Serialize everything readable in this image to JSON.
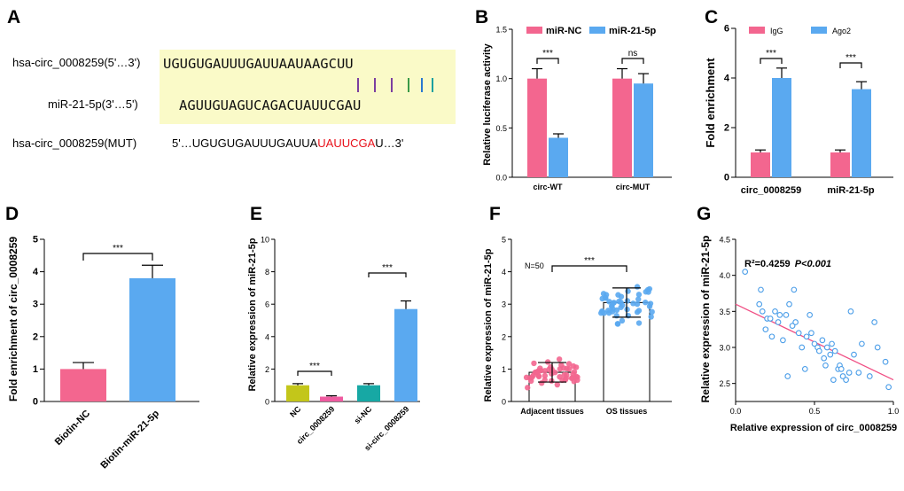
{
  "panel_labels": [
    "A",
    "B",
    "C",
    "D",
    "E",
    "F",
    "G"
  ],
  "panelA": {
    "rows": [
      {
        "label": "hsa-circ_0008259(5'…3')",
        "seq": "UGUGUGAUUUGAUUAAUAAGCUU"
      },
      {
        "label": "miR-21-5p(3'…5')",
        "seq": "AGUUGUAGUCAGACUAUUCGAU"
      },
      {
        "label": "hsa-circ_0008259(MUT)",
        "seq_prefix": "5'…UGUGUGAUUUGAUUA",
        "seq_mut": "UAUUCGA",
        "seq_suffix": "U…3'"
      }
    ],
    "colors": {
      "highlight": "#fafac8",
      "mutation": "#e8101a"
    }
  },
  "chart_data": [
    {
      "panel": "B",
      "type": "bar",
      "categories": [
        "circ-WT",
        "circ-MUT"
      ],
      "series": [
        {
          "name": "miR-NC",
          "values": [
            1.0,
            1.0
          ],
          "errors": [
            0.1,
            0.1
          ],
          "color": "#f3668f"
        },
        {
          "name": "miR-21-5p",
          "values": [
            0.4,
            0.95
          ],
          "errors": [
            0.04,
            0.1
          ],
          "color": "#5aa9f0"
        }
      ],
      "ylabel": "Relative luciferase activity",
      "ylim": [
        0,
        1.5
      ],
      "yticks": [
        "0.0",
        "0.5",
        "1.0",
        "1.5"
      ],
      "significance": [
        "***",
        "ns"
      ],
      "legend": "top"
    },
    {
      "panel": "C",
      "type": "bar",
      "categories": [
        "circ_0008259",
        "miR-21-5p"
      ],
      "series": [
        {
          "name": "IgG",
          "values": [
            1.0,
            1.0
          ],
          "errors": [
            0.1,
            0.1
          ],
          "color": "#f3668f"
        },
        {
          "name": "Ago2",
          "values": [
            4.0,
            3.55
          ],
          "errors": [
            0.4,
            0.3
          ],
          "color": "#5aa9f0"
        }
      ],
      "ylabel": "Fold enrichment",
      "ylim": [
        0,
        6
      ],
      "yticks": [
        "0",
        "2",
        "4",
        "6"
      ],
      "significance": [
        "***",
        "***"
      ],
      "legend": "top"
    },
    {
      "panel": "D",
      "type": "bar",
      "categories": [
        "Biotin-NC",
        "Biotin-miR-21-5p"
      ],
      "values": [
        1.0,
        3.8
      ],
      "errors": [
        0.2,
        0.4
      ],
      "colors": [
        "#f3668f",
        "#5aa9f0"
      ],
      "ylabel": "Fold enrichment of circ_0008259",
      "ylim": [
        0,
        5
      ],
      "yticks": [
        "0",
        "1",
        "2",
        "3",
        "4",
        "5"
      ],
      "significance": [
        "***"
      ]
    },
    {
      "panel": "E",
      "type": "bar",
      "categories": [
        "NC",
        "circ_0008259",
        "si-NC",
        "si-circ_0008259"
      ],
      "values": [
        1.0,
        0.3,
        1.0,
        5.7
      ],
      "errors": [
        0.1,
        0.05,
        0.1,
        0.5
      ],
      "colors": [
        "#c3c61a",
        "#ef5ba0",
        "#17a8a4",
        "#5aa9f0"
      ],
      "ylabel": "Relative expression of miR-21-5p",
      "ylim": [
        0,
        10
      ],
      "yticks": [
        "0",
        "2",
        "4",
        "6",
        "8",
        "10"
      ],
      "significance": [
        "***",
        "***"
      ]
    },
    {
      "panel": "F",
      "type": "bar",
      "categories": [
        "Adjacent tissues",
        "OS tissues"
      ],
      "values": [
        0.9,
        3.05
      ],
      "sd": [
        0.3,
        0.45
      ],
      "dot_colors": [
        "#f3668f",
        "#5aa9f0"
      ],
      "n_label": "N=50",
      "ylabel": "Relative expression of miR-21-5p",
      "ylim": [
        0,
        5
      ],
      "yticks": [
        "0",
        "1",
        "2",
        "3",
        "4",
        "5"
      ],
      "significance": [
        "***"
      ]
    },
    {
      "panel": "G",
      "type": "scatter",
      "xlabel": "Relative expression of circ_0008259",
      "ylabel": "Relative expression of miR-21-5p",
      "xlim": [
        0,
        1
      ],
      "ylim": [
        2.25,
        4.5
      ],
      "xticks": [
        "0.0",
        "0.5",
        "1.0"
      ],
      "yticks": [
        "2.5",
        "3.0",
        "3.5",
        "4.0",
        "4.5"
      ],
      "annotation_r2": "R²=0.4259",
      "annotation_p": "P<0.001",
      "line_color": "#f04f84",
      "point_color": "#4a9de8",
      "fit": {
        "x": [
          0.0,
          1.0
        ],
        "y": [
          3.6,
          2.55
        ]
      },
      "x": [
        0.06,
        0.16,
        0.19,
        0.17,
        0.2,
        0.23,
        0.25,
        0.27,
        0.3,
        0.32,
        0.34,
        0.36,
        0.38,
        0.42,
        0.45,
        0.48,
        0.5,
        0.52,
        0.53,
        0.55,
        0.57,
        0.58,
        0.6,
        0.62,
        0.63,
        0.65,
        0.66,
        0.68,
        0.7,
        0.72,
        0.73,
        0.75,
        0.8,
        0.85,
        0.9,
        0.95,
        0.97,
        0.15,
        0.28,
        0.33,
        0.4,
        0.44,
        0.47,
        0.56,
        0.61,
        0.67,
        0.78,
        0.88,
        0.22,
        0.37
      ],
      "y": [
        4.05,
        3.8,
        3.25,
        3.5,
        3.4,
        3.15,
        3.5,
        3.35,
        3.1,
        3.45,
        3.6,
        3.3,
        3.35,
        3.0,
        3.15,
        3.2,
        3.05,
        3.0,
        2.95,
        3.1,
        2.75,
        3.0,
        2.9,
        2.55,
        2.95,
        2.7,
        2.75,
        2.6,
        2.55,
        2.65,
        3.5,
        2.9,
        3.05,
        2.6,
        3.0,
        2.8,
        2.45,
        3.6,
        3.45,
        2.6,
        3.2,
        2.7,
        3.45,
        2.85,
        3.05,
        2.7,
        2.65,
        3.35,
        3.4,
        3.8
      ]
    }
  ]
}
